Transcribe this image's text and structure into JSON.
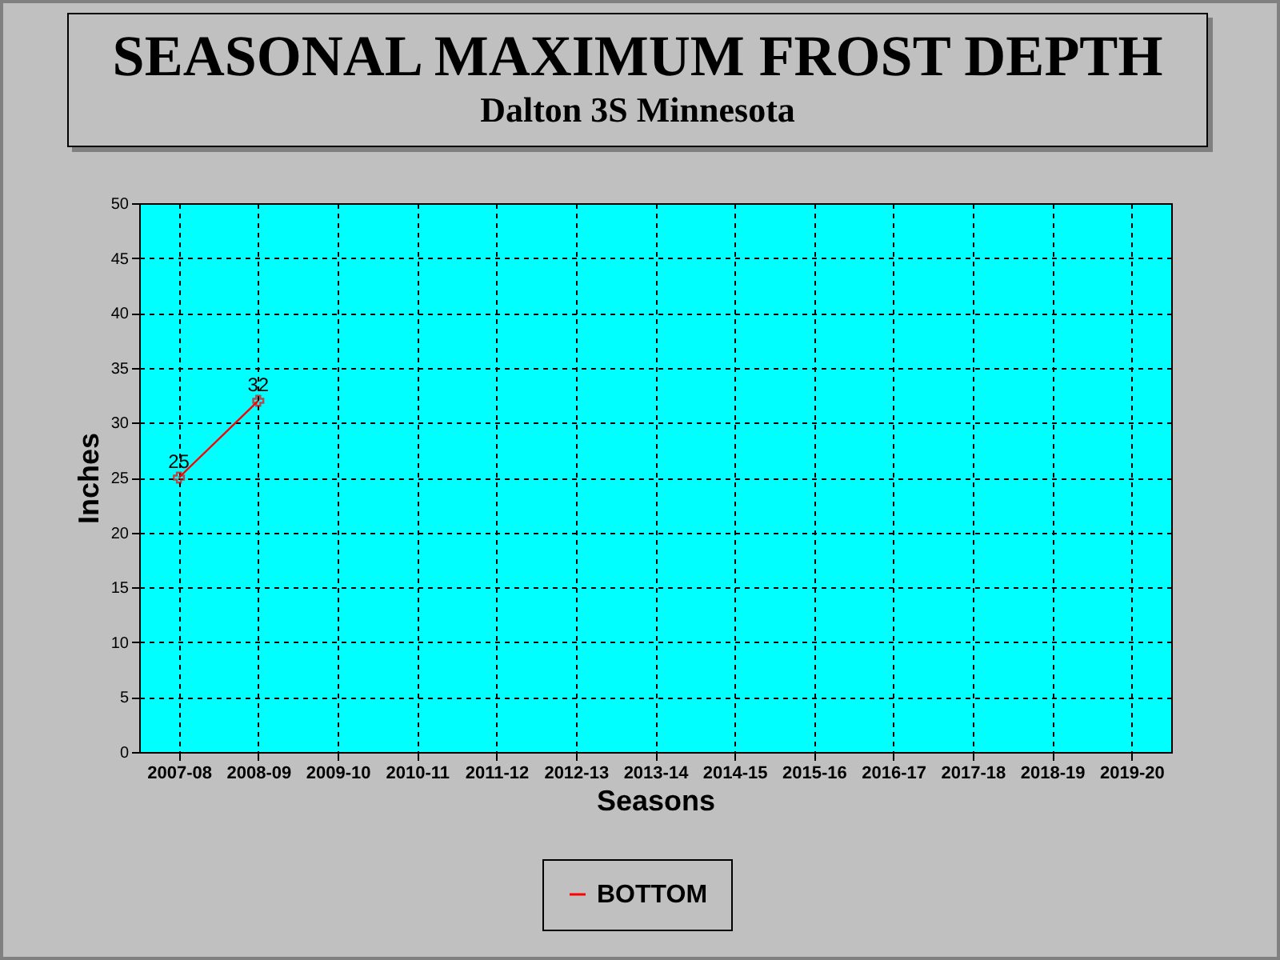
{
  "chart_data": {
    "type": "line",
    "title": "SEASONAL MAXIMUM FROST DEPTH",
    "subtitle": "Dalton 3S Minnesota",
    "xlabel": "Seasons",
    "ylabel": "Inches",
    "categories": [
      "2007-08",
      "2008-09",
      "2009-10",
      "2010-11",
      "2011-12",
      "2012-13",
      "2013-14",
      "2014-15",
      "2015-16",
      "2016-17",
      "2017-18",
      "2018-19",
      "2019-20"
    ],
    "series": [
      {
        "name": "BOTTOM",
        "color": "#ff0000",
        "values": [
          25,
          32,
          null,
          null,
          null,
          null,
          null,
          null,
          null,
          null,
          null,
          null,
          null
        ]
      }
    ],
    "ylim": [
      0,
      50
    ],
    "yticks": [
      0,
      5,
      10,
      15,
      20,
      25,
      30,
      35,
      40,
      45,
      50
    ],
    "grid": true,
    "legend": "bottom",
    "marker": "cross",
    "line_style": "solid",
    "data_labels": true
  }
}
